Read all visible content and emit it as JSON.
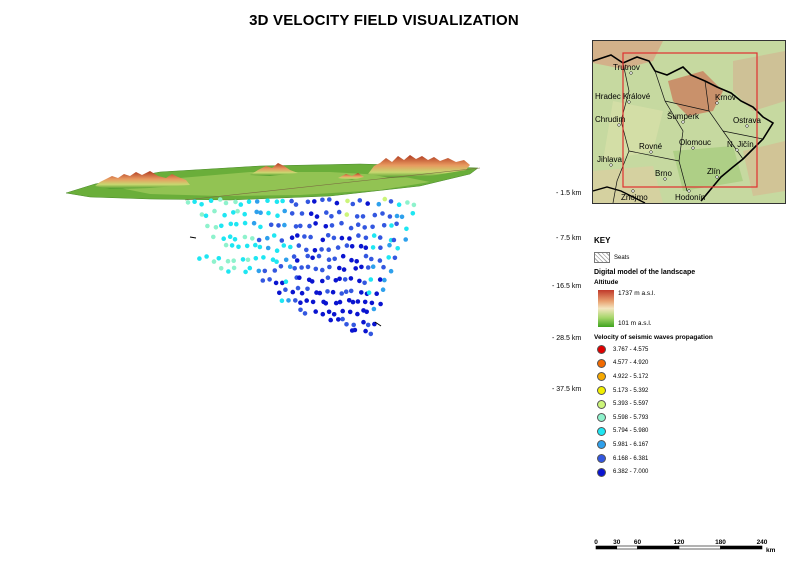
{
  "title": "3D VELOCITY FIELD VISUALIZATION",
  "depth_labels": [
    "- 1.5 km",
    "- 7.5 km",
    "- 16.5 km",
    "- 28.5 km",
    "- 37.5 km"
  ],
  "inset_map": {
    "cities": [
      "Trutnov",
      "Hradec Králové",
      "Krnov",
      "Chrudim",
      "Šumperk",
      "Ostrava",
      "Rovné",
      "Olomouc",
      "N. Jičín",
      "Jihlava",
      "Brno",
      "Zlín",
      "Znojmo",
      "Hodonín"
    ]
  },
  "key": {
    "title": "KEY",
    "seats_label": "Seats",
    "landscape_heading": "Digital model of the landscape",
    "altitude_label": "Altitude",
    "altitude_max": "1737 m  a.s.l.",
    "altitude_min": "101 m  a.s.l.",
    "velocity_heading": "Velocity of seismic waves propagation",
    "velocity_classes": [
      {
        "label": "3.767 - 4.575",
        "color": "#e00000"
      },
      {
        "label": "4.577 - 4.920",
        "color": "#f26a00"
      },
      {
        "label": "4.922 - 5.172",
        "color": "#f5a800"
      },
      {
        "label": "5.173 - 5.392",
        "color": "#f2ef00"
      },
      {
        "label": "5.393 - 5.597",
        "color": "#ccf57a"
      },
      {
        "label": "5.598 - 5.793",
        "color": "#8ef2cc"
      },
      {
        "label": "5.794 - 5.980",
        "color": "#1ee6f2"
      },
      {
        "label": "5.981 - 6.167",
        "color": "#2ea0ec"
      },
      {
        "label": "6.168 - 6.381",
        "color": "#3357e0"
      },
      {
        "label": "6.382 - 7.000",
        "color": "#0a14d0"
      }
    ]
  },
  "scale_bar": {
    "ticks": [
      "0",
      "30",
      "60",
      "120",
      "180",
      "240"
    ],
    "unit": "km"
  }
}
